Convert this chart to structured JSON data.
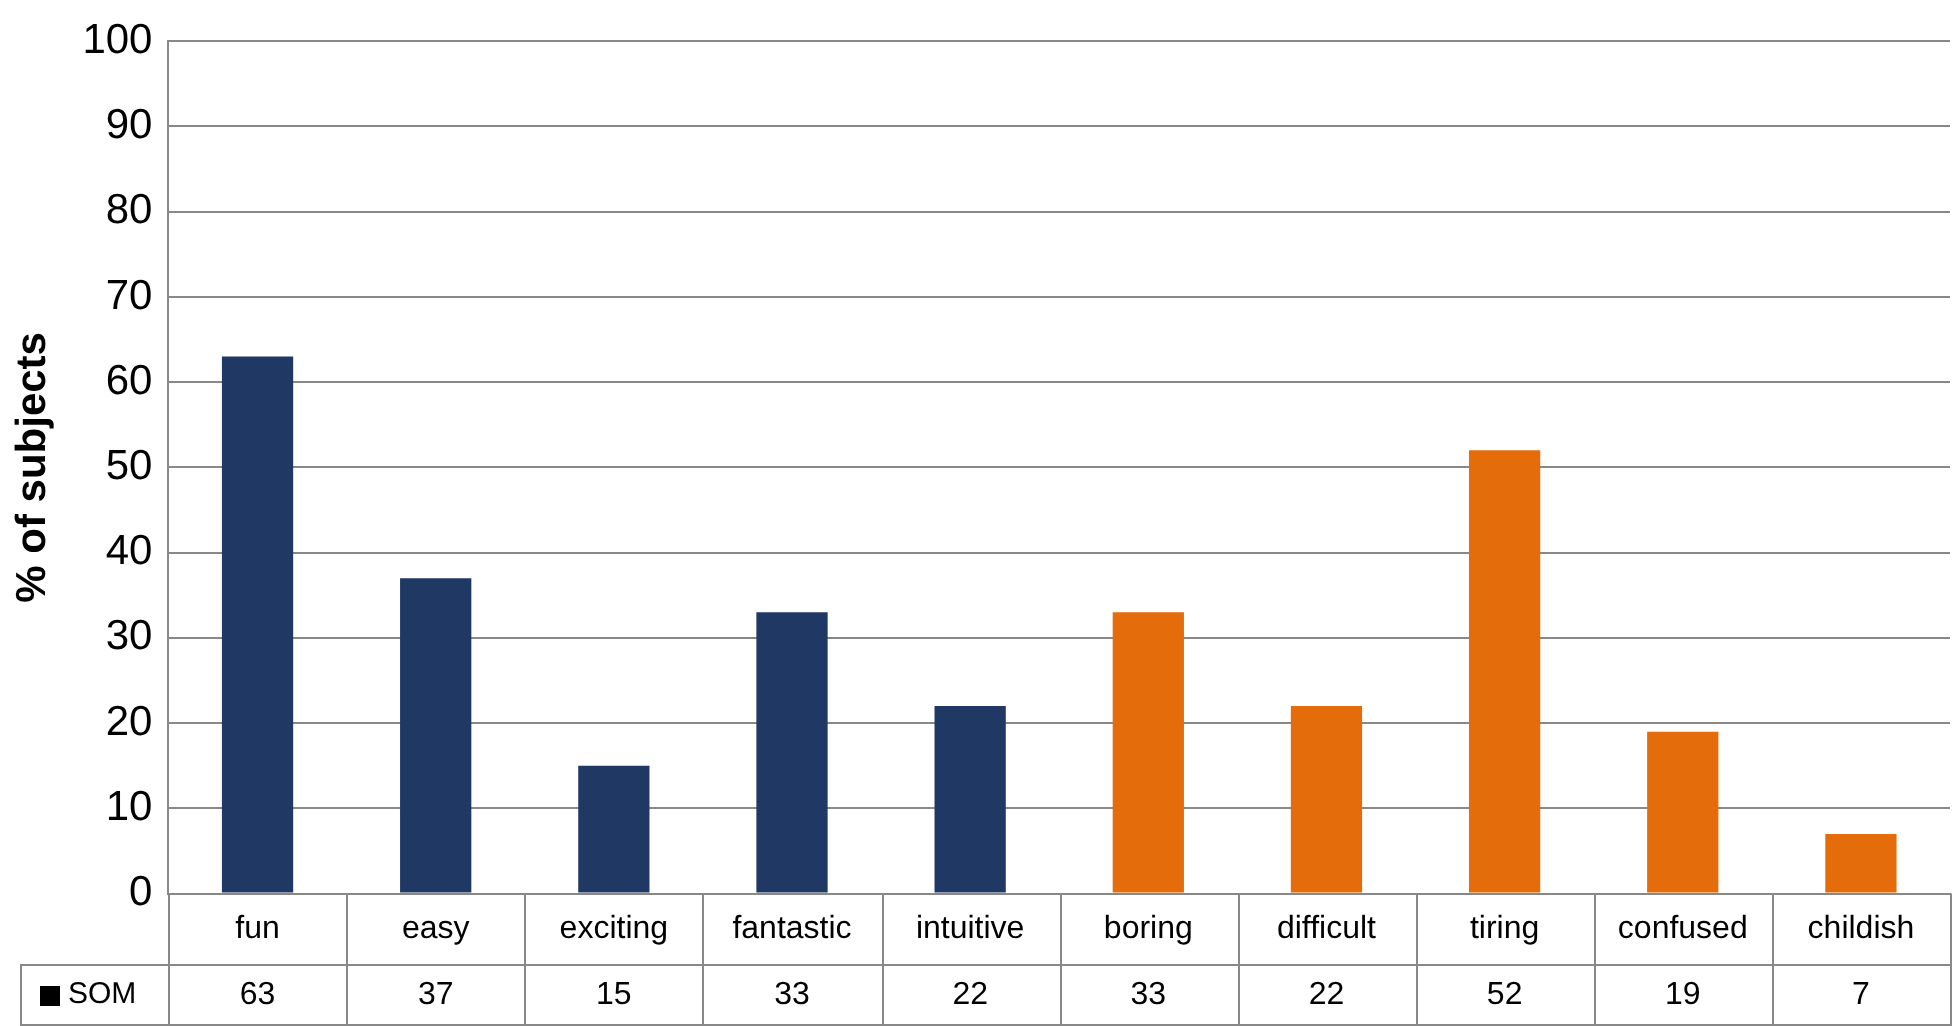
{
  "chart_data": {
    "type": "bar",
    "ylabel": "% of subjects",
    "categories": [
      "fun",
      "easy",
      "exciting",
      "fantastic",
      "intuitive",
      "boring",
      "difficult",
      "tiring",
      "confused",
      "childish"
    ],
    "series": [
      {
        "name": "SOM",
        "colors": [
          "#1f3864",
          "#1f3864",
          "#1f3864",
          "#1f3864",
          "#1f3864",
          "#e46c0a",
          "#e46c0a",
          "#e46c0a",
          "#e46c0a",
          "#e46c0a"
        ],
        "values": [
          63,
          37,
          15,
          33,
          22,
          33,
          22,
          52,
          19,
          7
        ]
      }
    ],
    "ylim": [
      0,
      100
    ],
    "yticks": [
      0,
      10,
      20,
      30,
      40,
      50,
      60,
      70,
      80,
      90,
      100
    ],
    "grid": "y",
    "data_labels": true,
    "legend": "bottom left"
  }
}
